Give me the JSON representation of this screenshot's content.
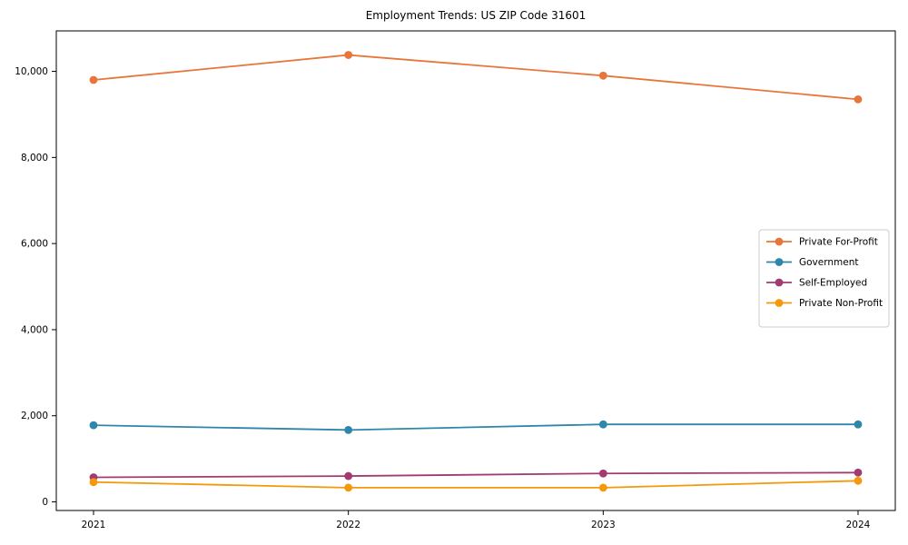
{
  "figure": {
    "background": "#ffffff",
    "plot_border_color": "#000000",
    "legend_border_color": "#cccccc"
  },
  "chart_data": {
    "type": "line",
    "title": "Employment Trends: US ZIP Code 31601",
    "xlabel": "",
    "ylabel": "",
    "grid": false,
    "legend_position": "center-right",
    "marker": "circle",
    "x": [
      2021,
      2022,
      2023,
      2024
    ],
    "x_tick_labels": [
      "2021",
      "2022",
      "2023",
      "2024"
    ],
    "y_ticks": [
      {
        "value": 0,
        "label": "0"
      },
      {
        "value": 2000,
        "label": "2,000"
      },
      {
        "value": 4000,
        "label": "4,000"
      },
      {
        "value": 6000,
        "label": "6,000"
      },
      {
        "value": 8000,
        "label": "8,000"
      },
      {
        "value": 10000,
        "label": "10,000"
      }
    ],
    "ylim": [
      -200,
      10940
    ],
    "series": [
      {
        "name": "Private For-Profit",
        "color": "#E8763A",
        "values": [
          9800,
          10380,
          9900,
          9350
        ]
      },
      {
        "name": "Government",
        "color": "#2E86AB",
        "values": [
          1780,
          1670,
          1800,
          1800
        ]
      },
      {
        "name": "Self-Employed",
        "color": "#A23B72",
        "values": [
          570,
          600,
          660,
          680
        ]
      },
      {
        "name": "Private Non-Profit",
        "color": "#F5990B",
        "values": [
          460,
          330,
          330,
          490
        ]
      }
    ]
  }
}
